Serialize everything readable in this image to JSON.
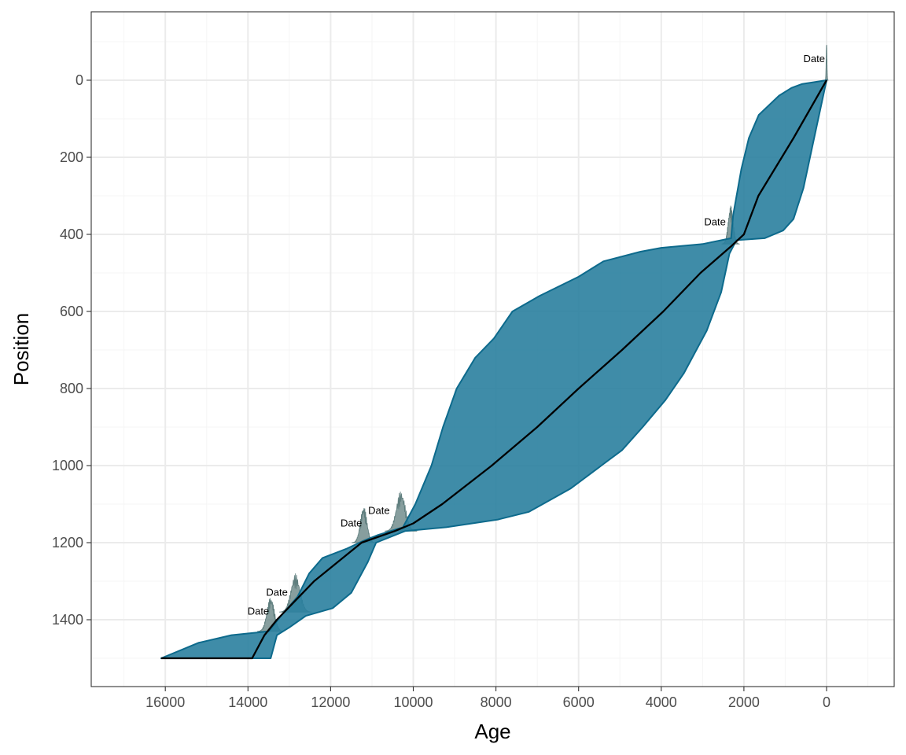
{
  "chart_data": {
    "type": "area",
    "xlabel": "Age",
    "ylabel": "Position",
    "x_reversed": true,
    "y_reversed": true,
    "xlim": [
      -1000,
      17300
    ],
    "ylim": [
      -180,
      1575
    ],
    "x_ticks": [
      16000,
      14000,
      12000,
      10000,
      8000,
      6000,
      4000,
      2000,
      0
    ],
    "x_tick_labels": [
      "16000",
      "14000",
      "12000",
      "10000",
      "8000",
      "6000",
      "4000",
      "2000",
      "0"
    ],
    "y_ticks": [
      0,
      200,
      400,
      600,
      800,
      1000,
      1200,
      1400
    ],
    "y_tick_labels": [
      "0",
      "200",
      "400",
      "600",
      "800",
      "1000",
      "1200",
      "1400"
    ],
    "grid": true,
    "colors": {
      "ribbon_fill": "#2a809f",
      "ribbon_stroke": "#0d6a8c",
      "median_line": "#000000",
      "date_dist": "#5f7e7e",
      "grid_major": "#ebebeb",
      "grid_minor": "#f5f5f5",
      "panel_border": "#333333"
    },
    "uncertainty_old_edge": [
      {
        "position": 0,
        "age": 0
      },
      {
        "position": 10,
        "age": 600
      },
      {
        "position": 20,
        "age": 850
      },
      {
        "position": 40,
        "age": 1150
      },
      {
        "position": 90,
        "age": 1640
      },
      {
        "position": 150,
        "age": 1880
      },
      {
        "position": 230,
        "age": 2060
      },
      {
        "position": 350,
        "age": 2260
      },
      {
        "position": 410,
        "age": 2310
      },
      {
        "position": 425,
        "age": 3000
      },
      {
        "position": 435,
        "age": 4000
      },
      {
        "position": 445,
        "age": 4500
      },
      {
        "position": 470,
        "age": 5400
      },
      {
        "position": 510,
        "age": 6000
      },
      {
        "position": 560,
        "age": 6950
      },
      {
        "position": 600,
        "age": 7600
      },
      {
        "position": 670,
        "age": 8050
      },
      {
        "position": 720,
        "age": 8500
      },
      {
        "position": 800,
        "age": 8950
      },
      {
        "position": 900,
        "age": 9280
      },
      {
        "position": 1000,
        "age": 9560
      },
      {
        "position": 1100,
        "age": 9950
      },
      {
        "position": 1160,
        "age": 10250
      },
      {
        "position": 1180,
        "age": 10850
      },
      {
        "position": 1195,
        "age": 11200
      },
      {
        "position": 1215,
        "age": 11600
      },
      {
        "position": 1240,
        "age": 12200
      },
      {
        "position": 1280,
        "age": 12520
      },
      {
        "position": 1340,
        "age": 12800
      },
      {
        "position": 1390,
        "age": 13200
      },
      {
        "position": 1430,
        "age": 13500
      },
      {
        "position": 1440,
        "age": 14400
      },
      {
        "position": 1460,
        "age": 15200
      },
      {
        "position": 1500,
        "age": 16100
      }
    ],
    "uncertainty_young_edge": [
      {
        "position": 0,
        "age": 0
      },
      {
        "position": 150,
        "age": 300
      },
      {
        "position": 280,
        "age": 560
      },
      {
        "position": 360,
        "age": 800
      },
      {
        "position": 390,
        "age": 1050
      },
      {
        "position": 410,
        "age": 1500
      },
      {
        "position": 415,
        "age": 2180
      },
      {
        "position": 450,
        "age": 2350
      },
      {
        "position": 550,
        "age": 2550
      },
      {
        "position": 650,
        "age": 2900
      },
      {
        "position": 760,
        "age": 3450
      },
      {
        "position": 830,
        "age": 3900
      },
      {
        "position": 900,
        "age": 4450
      },
      {
        "position": 960,
        "age": 4950
      },
      {
        "position": 1000,
        "age": 5450
      },
      {
        "position": 1060,
        "age": 6200
      },
      {
        "position": 1120,
        "age": 7200
      },
      {
        "position": 1140,
        "age": 7950
      },
      {
        "position": 1160,
        "age": 9200
      },
      {
        "position": 1170,
        "age": 10200
      },
      {
        "position": 1200,
        "age": 10900
      },
      {
        "position": 1250,
        "age": 11100
      },
      {
        "position": 1330,
        "age": 11500
      },
      {
        "position": 1370,
        "age": 11950
      },
      {
        "position": 1390,
        "age": 12600
      },
      {
        "position": 1420,
        "age": 13000
      },
      {
        "position": 1440,
        "age": 13300
      },
      {
        "position": 1500,
        "age": 13450
      }
    ],
    "median": [
      {
        "position": 0,
        "age": 0
      },
      {
        "position": 150,
        "age": 800
      },
      {
        "position": 300,
        "age": 1650
      },
      {
        "position": 400,
        "age": 2000
      },
      {
        "position": 430,
        "age": 2300
      },
      {
        "position": 500,
        "age": 3050
      },
      {
        "position": 600,
        "age": 3950
      },
      {
        "position": 700,
        "age": 4950
      },
      {
        "position": 800,
        "age": 6000
      },
      {
        "position": 900,
        "age": 7000
      },
      {
        "position": 1000,
        "age": 8100
      },
      {
        "position": 1100,
        "age": 9300
      },
      {
        "position": 1150,
        "age": 10000
      },
      {
        "position": 1170,
        "age": 10450
      },
      {
        "position": 1200,
        "age": 11250
      },
      {
        "position": 1300,
        "age": 12400
      },
      {
        "position": 1400,
        "age": 13300
      },
      {
        "position": 1440,
        "age": 13600
      },
      {
        "position": 1500,
        "age": 13900
      },
      {
        "position": 1500,
        "age": 16100
      }
    ],
    "dates": [
      {
        "label": "Date",
        "position": 0,
        "age_mean": 0,
        "age_sd": 10,
        "peak_height": 100,
        "label_age": 300,
        "label_position": -47
      },
      {
        "label": "Date",
        "position": 425,
        "age_mean": 2320,
        "age_sd": 60,
        "peak_height": 100,
        "label_age": 2700,
        "label_position": -48
      },
      {
        "label": "Date",
        "position": 1170,
        "age_mean": 10300,
        "age_sd": 110,
        "peak_height": 105,
        "label_age": 10830,
        "label_position": -45
      },
      {
        "label": "Date",
        "position": 1200,
        "age_mean": 11200,
        "age_sd": 80,
        "peak_height": 95,
        "label_age": 11500,
        "label_position": -42
      },
      {
        "label": "Date",
        "position": 1380,
        "age_mean": 12850,
        "age_sd": 110,
        "peak_height": 100,
        "label_age": 13300,
        "label_position": -42
      },
      {
        "label": "Date",
        "position": 1430,
        "age_mean": 13450,
        "age_sd": 90,
        "peak_height": 90,
        "label_age": 13750,
        "label_position": -43
      }
    ]
  }
}
